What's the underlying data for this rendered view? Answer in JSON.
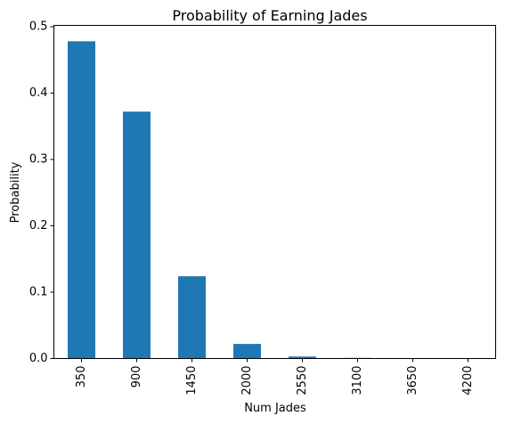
{
  "chart_data": {
    "type": "bar",
    "title": "Probability of Earning Jades",
    "xlabel": "Num Jades",
    "ylabel": "Probability",
    "categories": [
      "350",
      "900",
      "1450",
      "2000",
      "2550",
      "3100",
      "3650",
      "4200"
    ],
    "values": [
      0.478,
      0.372,
      0.124,
      0.022,
      0.003,
      0.001,
      0.0003,
      0.0001
    ],
    "ylim": [
      0,
      0.502
    ],
    "yticks": [
      0.0,
      0.1,
      0.2,
      0.3,
      0.4,
      0.5
    ],
    "ytick_labels": [
      "0.0",
      "0.1",
      "0.2",
      "0.3",
      "0.4",
      "0.5"
    ],
    "xtick_rotation": 90,
    "grid": false,
    "legend": "none",
    "bar_color": "#1f77b4"
  }
}
